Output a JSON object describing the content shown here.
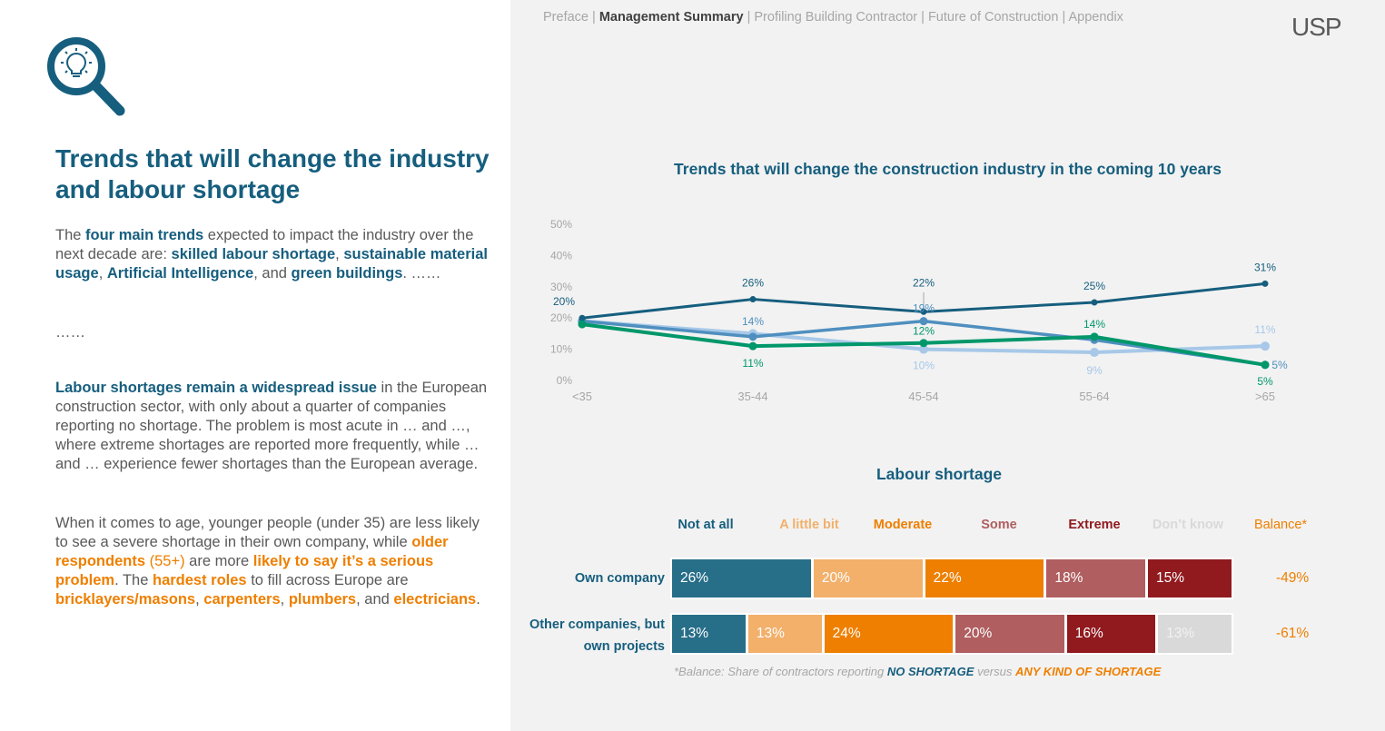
{
  "nav": {
    "items": [
      {
        "label": "Preface",
        "active": false
      },
      {
        "label": "Management Summary",
        "active": true
      },
      {
        "label": "Profiling Building Contractor",
        "active": false
      },
      {
        "label": "Future of Construction",
        "active": false
      },
      {
        "label": "Appendix",
        "active": false
      }
    ],
    "separator": " | "
  },
  "logo": {
    "text": "USP"
  },
  "left": {
    "icon": "magnifier-lightbulb-icon",
    "title": "Trends that will change the industry and labour shortage",
    "p1": [
      {
        "t": "The ",
        "s": "n"
      },
      {
        "t": "four main trends",
        "s": "b"
      },
      {
        "t": " expected to impact the industry over the next decade are: ",
        "s": "n"
      },
      {
        "t": "skilled labour shortage",
        "s": "b"
      },
      {
        "t": ", ",
        "s": "n"
      },
      {
        "t": "sustainable material usage",
        "s": "b"
      },
      {
        "t": ", ",
        "s": "n"
      },
      {
        "t": "Artificial Intelligence",
        "s": "b"
      },
      {
        "t": ", and ",
        "s": "n"
      },
      {
        "t": "green buildings",
        "s": "b"
      },
      {
        "t": ". ……",
        "s": "n"
      }
    ],
    "p2": "……",
    "p3": [
      {
        "t": "Labour shortages remain a widespread issue",
        "s": "b"
      },
      {
        "t": " in the European construction sector, with only about a quarter of companies reporting no shortage. The problem is most acute in … and …, where extreme shortages are reported more frequently, while … and … experience fewer shortages than the European average.",
        "s": "n"
      }
    ],
    "p4": [
      {
        "t": "When it comes to age, younger people (under 35) are less likely to see a severe shortage in their own company, while ",
        "s": "n"
      },
      {
        "t": "older respondents",
        "s": "o"
      },
      {
        "t": " (55+)",
        "s": "oN"
      },
      {
        "t": " are more ",
        "s": "n"
      },
      {
        "t": "likely to say it’s a serious problem",
        "s": "o"
      },
      {
        "t": ". The ",
        "s": "n"
      },
      {
        "t": "hardest roles",
        "s": "o"
      },
      {
        "t": " to fill across Europe are ",
        "s": "n"
      },
      {
        "t": "bricklayers/masons",
        "s": "o"
      },
      {
        "t": ", ",
        "s": "n"
      },
      {
        "t": "carpenters",
        "s": "o"
      },
      {
        "t": ", ",
        "s": "n"
      },
      {
        "t": "plumbers",
        "s": "o"
      },
      {
        "t": ", and ",
        "s": "n"
      },
      {
        "t": "electricians",
        "s": "o"
      },
      {
        "t": ".",
        "s": "n"
      }
    ]
  },
  "chart_data": [
    {
      "type": "line",
      "title": "Trends that will change the construction industry in the coming 10 years",
      "xlabel": "",
      "ylabel": "",
      "x": [
        "<35",
        "35-44",
        "45-54",
        "55-64",
        ">65"
      ],
      "ylim": [
        0,
        50
      ],
      "yticks": [
        "0%",
        "10%",
        "20%",
        "30%",
        "40%",
        "50%"
      ],
      "grid": false,
      "legend": "none",
      "series": [
        {
          "name": "skilled labour shortage",
          "color": "#165e7e",
          "values": [
            20,
            26,
            22,
            25,
            31
          ],
          "labels": [
            "20%",
            "26%",
            "22%",
            "25%",
            "31%"
          ]
        },
        {
          "name": "sustainable material usage",
          "color": "#4f8fbf",
          "values": [
            19,
            14,
            19,
            13,
            5
          ],
          "labels": [
            "",
            "14%",
            "19%",
            "",
            "5%"
          ]
        },
        {
          "name": "Artificial Intelligence",
          "color": "#a7c8e8",
          "values": [
            19,
            15,
            10,
            9,
            11
          ],
          "labels": [
            "",
            "",
            "10%",
            "9%",
            "11%"
          ]
        },
        {
          "name": "green buildings",
          "color": "#00976a",
          "values": [
            18,
            11,
            12,
            14,
            5
          ],
          "labels": [
            "",
            "11%",
            "12%",
            "14%",
            "5%"
          ]
        }
      ]
    },
    {
      "type": "bar",
      "orientation": "horizontal-stacked",
      "title": "Labour shortage",
      "categories": [
        "Own company",
        "Other companies, but own projects"
      ],
      "series": [
        {
          "name": "Not at all",
          "color": "#276e89",
          "label_color": "#165e7e",
          "values": [
            26,
            13
          ]
        },
        {
          "name": "A little bit",
          "color": "#f2b06b",
          "label_color": "#f2b06b",
          "values": [
            20,
            13
          ]
        },
        {
          "name": "Moderate",
          "color": "#ee7f00",
          "label_color": "#ee7f00",
          "values": [
            22,
            24
          ]
        },
        {
          "name": "Some",
          "color": "#b05e60",
          "label_color": "#b05e60",
          "values": [
            18,
            20
          ]
        },
        {
          "name": "Extreme",
          "color": "#901a1e",
          "label_color": "#901a1e",
          "values": [
            15,
            16
          ]
        },
        {
          "name": "Don’t know",
          "color": "#d9d9d9",
          "label_color": "#d9d9d9",
          "values": [
            0,
            13
          ]
        }
      ],
      "balance": {
        "label": "Balance*",
        "values": [
          "-49%",
          "-61%"
        ]
      },
      "footnote": {
        "prefix": "*Balance: Share of contractors reporting ",
        "no": "NO SHORTAGE",
        "mid": " versus ",
        "any": "ANY KIND OF SHORTAGE"
      }
    }
  ]
}
